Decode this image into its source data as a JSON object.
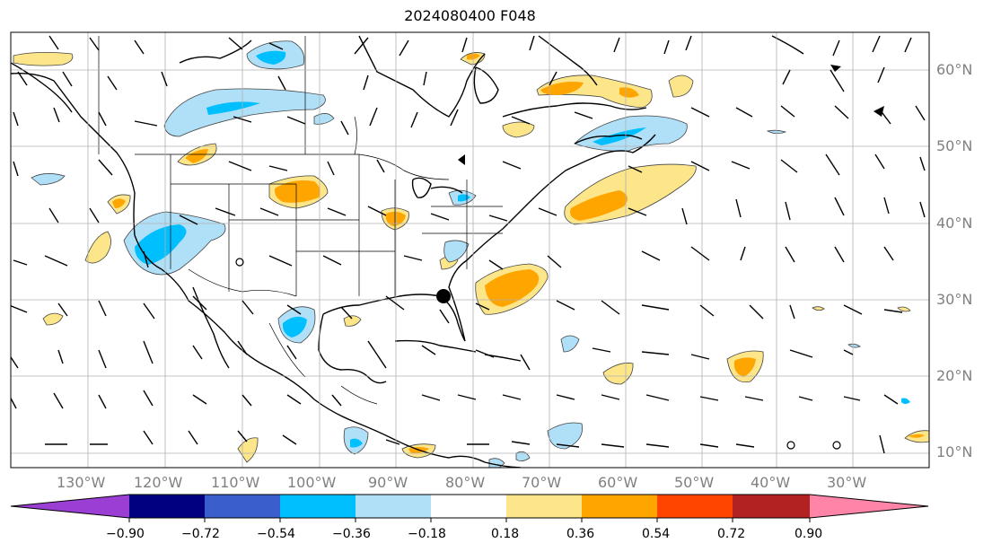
{
  "title": "2024080400 F048",
  "map": {
    "lon_labels": [
      "130°W",
      "120°W",
      "110°W",
      "100°W",
      "90°W",
      "80°W",
      "70°W",
      "60°W",
      "50°W",
      "40°W",
      "30°W"
    ],
    "lat_labels": [
      "60°N",
      "50°N",
      "40°N",
      "30°N",
      "20°N",
      "10°N"
    ],
    "gridline_color": "#b0b0b0",
    "contour_outline_color": "#444444"
  },
  "colorbar": {
    "ticks": [
      "−0.90",
      "−0.72",
      "−0.54",
      "−0.36",
      "−0.18",
      "0.18",
      "0.36",
      "0.54",
      "0.72",
      "0.90"
    ],
    "colors": [
      "#9b3fd4",
      "#9b3fd4",
      "#000080",
      "#3a5fcd",
      "#00bfff",
      "#b0e0f8",
      "#ffffff",
      "#fde68a",
      "#ffa500",
      "#ff4500",
      "#b22222",
      "#ff85a8",
      "#ff85a8"
    ]
  }
}
